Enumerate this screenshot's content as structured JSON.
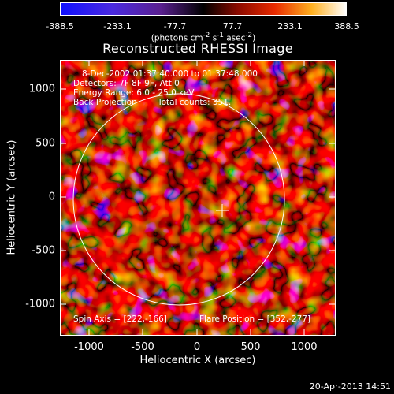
{
  "colorbar": {
    "ticks": [
      "-388.5",
      "-233.1",
      "-77.7",
      "77.7",
      "233.1",
      "388.5"
    ],
    "unit_html": "(photons cm<sup>-2</sup> s<sup>-1</sup> asec<sup>-2</sup>)"
  },
  "title": "Reconstructed RHESSI Image",
  "annotations": {
    "time": "8-Dec-2002 01:37:40.000 to 01:37:48.000",
    "detectors": "Detectors: 7F 8F 9F, Att 0",
    "energy": "Energy Range: 6.0 - 25.0 keV",
    "method": "Back Projection",
    "counts": "Total counts: 351.",
    "spin_axis": "Spin Axis = [222,-166]",
    "flare_position": "Flare Position = [352,-277]"
  },
  "axes": {
    "xlabel": "Heliocentric X (arcsec)",
    "ylabel": "Heliocentric Y (arcsec)",
    "xticks": [
      "-1000",
      "-500",
      "0",
      "500",
      "1000"
    ],
    "yticks": [
      "1000",
      "500",
      "0",
      "-500",
      "-1000"
    ]
  },
  "footer": "20-Apr-2013 14:51",
  "colors": {
    "low": "#0000ff",
    "mid": "#000000",
    "high": "#ffffff"
  }
}
